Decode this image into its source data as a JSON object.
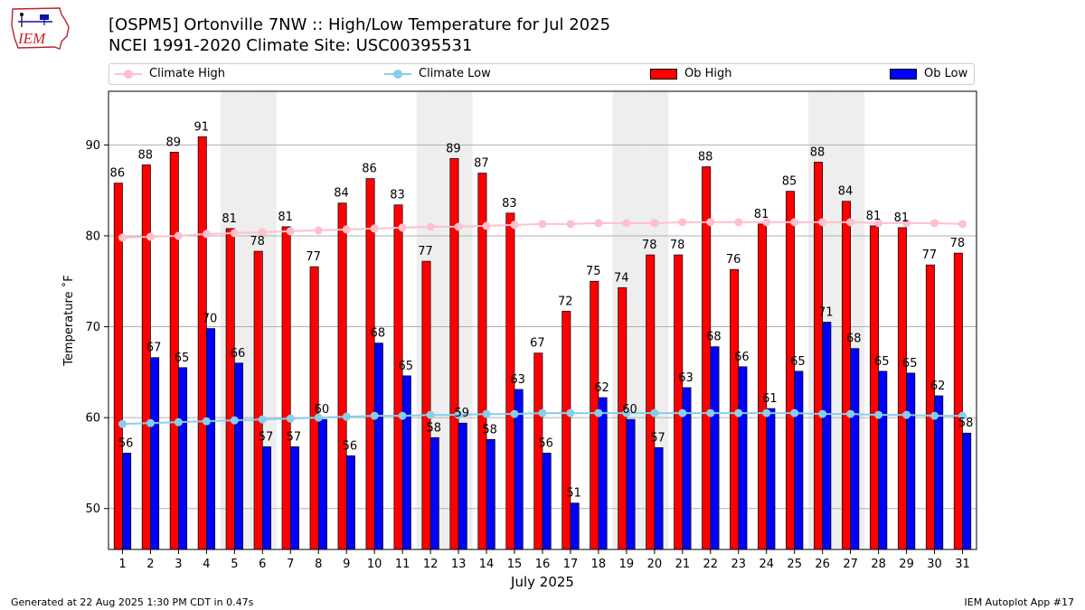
{
  "logo": {
    "text": "IEM"
  },
  "header": {
    "title_line1": "[OSPM5] Ortonville 7NW :: High/Low Temperature for Jul 2025",
    "title_line2": "NCEI 1991-2020 Climate Site: USC00395531"
  },
  "legend": {
    "climate_high": "Climate High",
    "climate_low": "Climate Low",
    "ob_high": "Ob High",
    "ob_low": "Ob Low"
  },
  "chart_data": {
    "type": "bar",
    "xlabel": "July 2025",
    "ylabel": "Temperature ˚F",
    "ylim": [
      45.5,
      95.9
    ],
    "yticks": [
      50,
      60,
      70,
      80,
      90
    ],
    "grid": true,
    "legend_position": "top",
    "weekend_shading_days": [
      5,
      6,
      12,
      13,
      19,
      20,
      26,
      27
    ],
    "categories": [
      "1",
      "2",
      "3",
      "4",
      "5",
      "6",
      "7",
      "8",
      "9",
      "10",
      "11",
      "12",
      "13",
      "14",
      "15",
      "16",
      "17",
      "18",
      "19",
      "20",
      "21",
      "22",
      "23",
      "24",
      "25",
      "26",
      "27",
      "28",
      "29",
      "30",
      "31"
    ],
    "series": [
      {
        "name": "Ob High",
        "kind": "bar",
        "color": "#ff0000",
        "values": [
          85.8,
          87.8,
          89.2,
          90.9,
          80.8,
          78.3,
          81.0,
          76.6,
          83.6,
          86.3,
          83.4,
          77.2,
          88.5,
          86.9,
          82.5,
          67.1,
          71.7,
          75.0,
          74.3,
          77.9,
          77.9,
          87.6,
          76.3,
          81.3,
          84.9,
          88.1,
          83.8,
          81.1,
          80.9,
          76.8,
          78.1
        ],
        "labels": [
          "86",
          "88",
          "89",
          "91",
          "81",
          "78",
          "81",
          "77",
          "84",
          "86",
          "83",
          "77",
          "89",
          "87",
          "83",
          "67",
          "72",
          "75",
          "74",
          "78",
          "78",
          "88",
          "76",
          "81",
          "85",
          "88",
          "84",
          "81",
          "81",
          "77",
          "78"
        ]
      },
      {
        "name": "Ob Low",
        "kind": "bar",
        "color": "#0000ff",
        "values": [
          56.1,
          66.6,
          65.5,
          69.8,
          66.0,
          56.8,
          56.8,
          59.8,
          55.8,
          68.2,
          64.6,
          57.8,
          59.4,
          57.6,
          63.1,
          56.1,
          50.6,
          62.2,
          59.8,
          56.7,
          63.3,
          67.8,
          65.6,
          61.0,
          65.1,
          70.5,
          67.6,
          65.1,
          64.9,
          62.4,
          58.3
        ],
        "labels": [
          "56",
          "67",
          "65",
          "70",
          "66",
          "57",
          "57",
          "60",
          "56",
          "68",
          "65",
          "58",
          "59",
          "58",
          "63",
          "56",
          "51",
          "62",
          "60",
          "57",
          "63",
          "68",
          "66",
          "61",
          "65",
          "71",
          "68",
          "65",
          "65",
          "62",
          "58"
        ]
      },
      {
        "name": "Climate High",
        "kind": "line",
        "color": "#ffc0cb",
        "values": [
          79.8,
          79.9,
          80.0,
          80.2,
          80.3,
          80.4,
          80.5,
          80.6,
          80.7,
          80.8,
          80.9,
          81.0,
          81.0,
          81.1,
          81.2,
          81.3,
          81.3,
          81.4,
          81.4,
          81.4,
          81.5,
          81.5,
          81.5,
          81.5,
          81.5,
          81.5,
          81.5,
          81.4,
          81.4,
          81.4,
          81.3
        ]
      },
      {
        "name": "Climate Low",
        "kind": "line",
        "color": "#87ceeb",
        "values": [
          59.3,
          59.4,
          59.5,
          59.6,
          59.7,
          59.8,
          59.9,
          60.0,
          60.1,
          60.2,
          60.2,
          60.3,
          60.3,
          60.4,
          60.4,
          60.5,
          60.5,
          60.5,
          60.5,
          60.5,
          60.5,
          60.5,
          60.5,
          60.5,
          60.5,
          60.4,
          60.4,
          60.3,
          60.3,
          60.2,
          60.2
        ]
      }
    ]
  },
  "footer": {
    "generated": "Generated at 22 Aug 2025 1:30 PM CDT in 0.47s",
    "app": "IEM Autoplot App #17"
  }
}
